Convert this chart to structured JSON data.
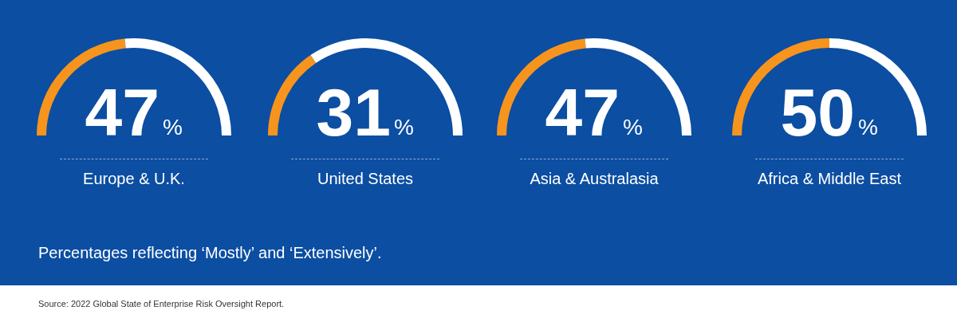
{
  "chart_data": [
    {
      "type": "donut",
      "title": "Europe & U.K.",
      "categories": [
        null,
        null
      ],
      "values": [
        47,
        53
      ],
      "colors": [
        "#f7941d",
        "#ffffff"
      ],
      "annotations": [
        "47%"
      ]
    },
    {
      "type": "donut",
      "title": "United States",
      "categories": [
        null,
        null
      ],
      "values": [
        31,
        69
      ],
      "colors": [
        "#f7941d",
        "#ffffff"
      ],
      "annotations": [
        "31%"
      ]
    },
    {
      "type": "donut",
      "title": "Asia & Australasia",
      "categories": [
        null,
        null
      ],
      "values": [
        47,
        53
      ],
      "colors": [
        "#f7941d",
        "#ffffff"
      ],
      "annotations": [
        "47%"
      ]
    },
    {
      "type": "donut",
      "title": "Africa & Middle East",
      "categories": [
        null,
        null
      ],
      "values": [
        50,
        50
      ],
      "colors": [
        "#f7941d",
        "#ffffff"
      ],
      "annotations": [
        "50%"
      ]
    },
    {
      "type": "other",
      "annotations": [
        "Percentages reflecting ‘Mostly’ and ‘Extensively’.",
        "Source: 2022 Global State of Enterprise Risk Oversight Report."
      ]
    }
  ]
}
